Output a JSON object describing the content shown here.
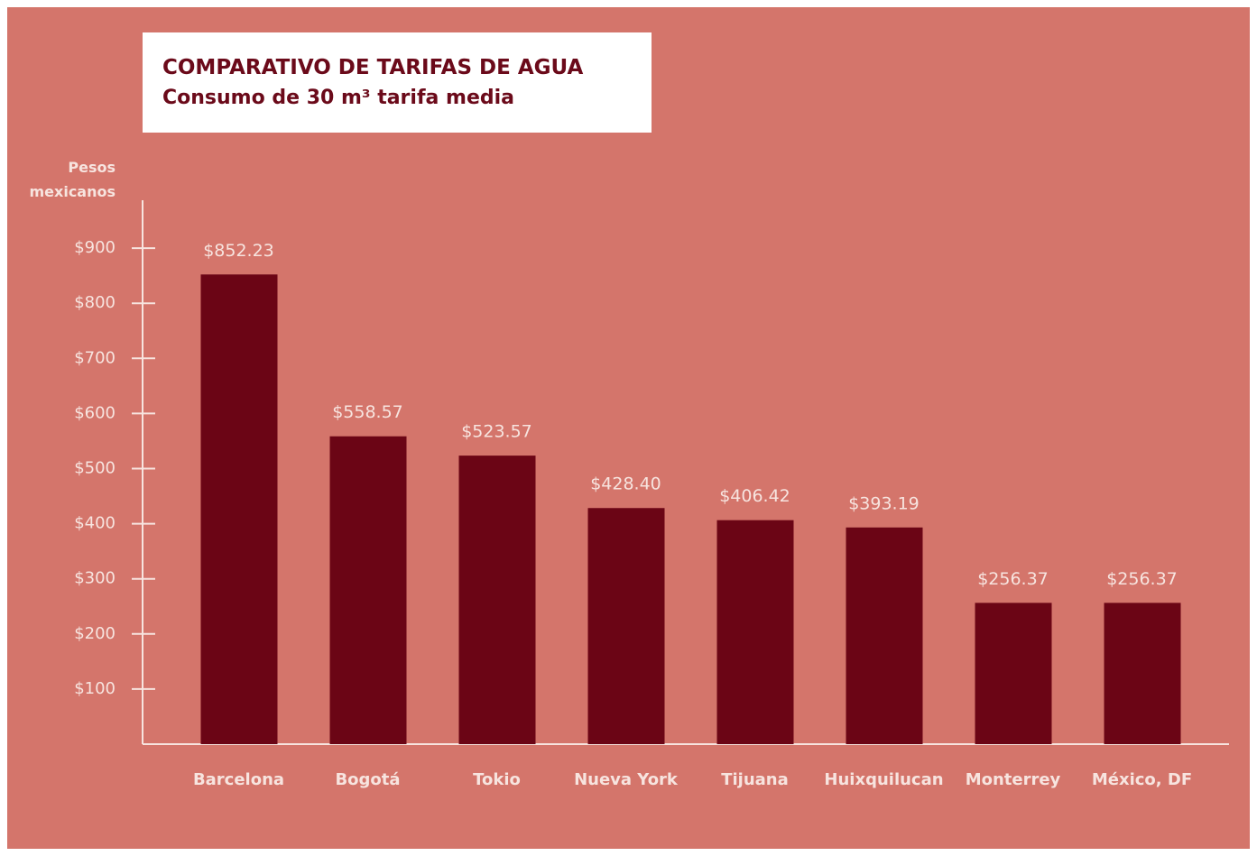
{
  "chart_data": {
    "type": "bar",
    "title": "COMPARATIVO DE TARIFAS DE AGUA",
    "subtitle": "Consumo de 30 m³ tarifa media",
    "y_label": "Pesos mexicanos",
    "categories": [
      "Barcelona",
      "Bogotá",
      "Tokio",
      "Nueva York",
      "Tijuana",
      "Huixquilucan",
      "Monterrey",
      "México, DF"
    ],
    "values": [
      852.23,
      558.57,
      523.57,
      428.4,
      406.42,
      393.19,
      256.37,
      256.37
    ],
    "value_labels": [
      "$852.23",
      "$558.57",
      "$523.57",
      "$428.40",
      "$406.42",
      "$393.19",
      "$256.37",
      "$256.37"
    ],
    "color": "#6b0515",
    "ylim": [
      0,
      1000
    ],
    "yticks": [
      {
        "value": 100,
        "label": "$100"
      },
      {
        "value": 200,
        "label": "$200"
      },
      {
        "value": 300,
        "label": "$300"
      },
      {
        "value": 400,
        "label": "$400"
      },
      {
        "value": 500,
        "label": "$500"
      },
      {
        "value": 600,
        "label": "$600"
      },
      {
        "value": 700,
        "label": "$700"
      },
      {
        "value": 800,
        "label": "$800"
      },
      {
        "value": 900,
        "label": "$900"
      }
    ]
  }
}
